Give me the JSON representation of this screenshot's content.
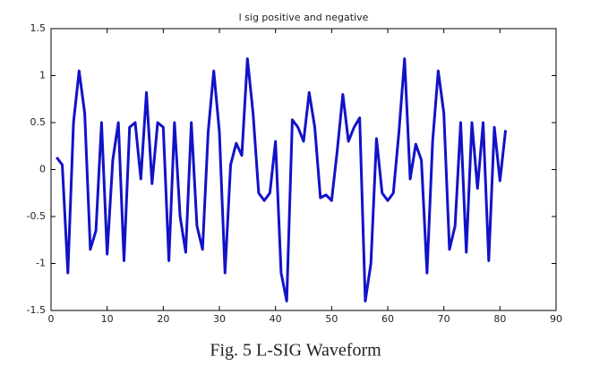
{
  "chart_data": {
    "type": "line",
    "title": "l sig positive and negative",
    "x": [
      1,
      2,
      3,
      4,
      5,
      6,
      7,
      8,
      9,
      10,
      11,
      12,
      13,
      14,
      15,
      16,
      17,
      18,
      19,
      20,
      21,
      22,
      23,
      24,
      25,
      26,
      27,
      28,
      29,
      30,
      31,
      32,
      33,
      34,
      35,
      36,
      37,
      38,
      39,
      40,
      41,
      42,
      43,
      44,
      45,
      46,
      47,
      48,
      49,
      50,
      51,
      52,
      53,
      54,
      55,
      56,
      57,
      58,
      59,
      60,
      61,
      62,
      63,
      64,
      65,
      66,
      67,
      68,
      69,
      70,
      71,
      72,
      73,
      74,
      75,
      76,
      77,
      78,
      79,
      80,
      81
    ],
    "series": [
      {
        "color": "#1212c8",
        "values": [
          0.13,
          0.05,
          -1.1,
          0.5,
          1.05,
          0.6,
          -0.85,
          -0.65,
          0.5,
          -0.9,
          0.1,
          0.5,
          -0.97,
          0.45,
          0.5,
          -0.1,
          0.82,
          -0.15,
          0.5,
          0.45,
          -0.97,
          0.5,
          -0.5,
          -0.88,
          0.5,
          -0.6,
          -0.85,
          0.4,
          1.05,
          0.4,
          -1.1,
          0.05,
          0.28,
          0.15,
          1.18,
          0.6,
          -0.25,
          -0.33,
          -0.25,
          0.3,
          -1.1,
          -1.4,
          0.53,
          0.45,
          0.3,
          0.82,
          0.45,
          -0.3,
          -0.27,
          -0.33,
          0.2,
          0.8,
          0.3,
          0.45,
          0.55,
          -1.4,
          -1.0,
          0.33,
          -0.25,
          -0.33,
          -0.25,
          0.4,
          1.18,
          -0.1,
          0.27,
          0.1,
          -1.1,
          0.3,
          1.05,
          0.6,
          -0.85,
          -0.6,
          0.5,
          -0.88,
          0.5,
          -0.2,
          0.5,
          -0.97,
          0.45,
          -0.12,
          0.42
        ]
      }
    ],
    "xlim": [
      0,
      90
    ],
    "xticks": [
      0,
      10,
      20,
      30,
      40,
      50,
      60,
      70,
      80,
      90
    ],
    "ylim": [
      -1.5,
      1.5
    ],
    "yticks": [
      -1.5,
      -1,
      -0.5,
      0,
      0.5,
      1,
      1.5
    ]
  },
  "caption": "Fig. 5 L-SIG Waveform"
}
